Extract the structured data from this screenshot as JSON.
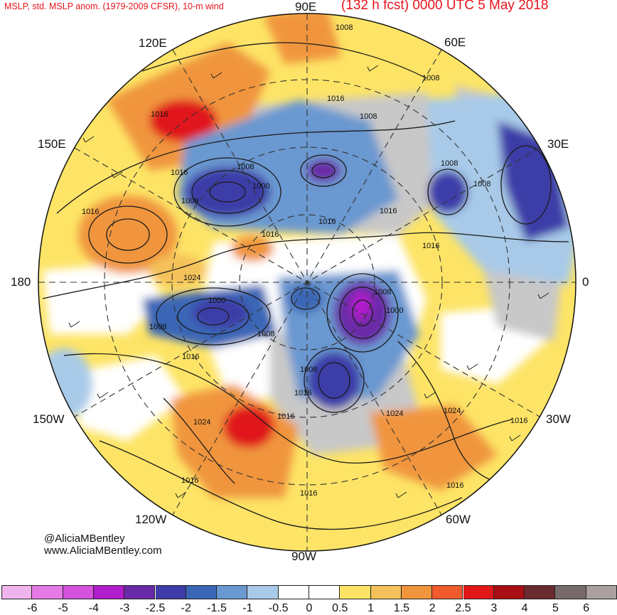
{
  "header": {
    "title_left": "MSLP, std. MSLP anom. (1979-2009 CFSR), 10-m wind",
    "title_right": "(132 h fcst) 0000 UTC 5 May 2018"
  },
  "longitude_labels": {
    "lon_90e": "90E",
    "lon_60e": "60E",
    "lon_120e": "120E",
    "lon_30e": "30E",
    "lon_150e": "150E",
    "lon_180": "180",
    "lon_0": "0",
    "lon_150w": "150W",
    "lon_30w": "30W",
    "lon_120w": "120W",
    "lon_60w": "60W",
    "lon_90w": "90W"
  },
  "credits": {
    "handle": "@AliciaMBentley",
    "website": "www.AliciaMBentley.com"
  },
  "isobar_labels": [
    {
      "text": "1008"
    },
    {
      "text": "1008"
    },
    {
      "text": "1016"
    },
    {
      "text": "1008"
    },
    {
      "text": "1016"
    },
    {
      "text": "1016"
    },
    {
      "text": "1008"
    },
    {
      "text": "1008"
    },
    {
      "text": "1000"
    },
    {
      "text": "1008"
    },
    {
      "text": "1008"
    },
    {
      "text": "1016"
    },
    {
      "text": "1016"
    },
    {
      "text": "1016"
    },
    {
      "text": "1016"
    },
    {
      "text": "1016"
    },
    {
      "text": "1024"
    },
    {
      "text": "1000"
    },
    {
      "text": "1008"
    },
    {
      "text": "1008"
    },
    {
      "text": "1008"
    },
    {
      "text": "1000"
    },
    {
      "text": "1016"
    },
    {
      "text": "1008"
    },
    {
      "text": "1016"
    },
    {
      "text": "1024"
    },
    {
      "text": "1024"
    },
    {
      "text": "1016"
    },
    {
      "text": "1024"
    },
    {
      "text": "1016"
    },
    {
      "text": "1016"
    },
    {
      "text": "1016"
    },
    {
      "text": "1016"
    }
  ],
  "colorbar": {
    "ticks": [
      "-6",
      "-5",
      "-4",
      "-3",
      "-2.5",
      "-2",
      "-1.5",
      "-1",
      "-0.5",
      "0",
      "0.5",
      "1",
      "1.5",
      "2",
      "2.5",
      "3",
      "4",
      "5",
      "6"
    ],
    "colors": [
      "#f0b4ec",
      "#e57ae5",
      "#d452dc",
      "#b11ccc",
      "#6a2aa8",
      "#3e3ca8",
      "#3a66b6",
      "#6a98d0",
      "#a8cae8",
      "#ffffff",
      "#ffffff",
      "#fde466",
      "#f4c15a",
      "#f0953c",
      "#f05a2c",
      "#e0181a",
      "#a80e14",
      "#6a2a2e",
      "#766a6a",
      "#aaa0a0"
    ]
  },
  "anomaly_regions": [
    {
      "name": "east-asia-positive",
      "value": 2.5,
      "color": "#e0181a"
    },
    {
      "name": "north-pacific-positive",
      "value": 1.5,
      "color": "#f0953c"
    },
    {
      "name": "north-america-positive",
      "value": 2.5,
      "color": "#e0181a"
    },
    {
      "name": "north-atlantic-positive",
      "value": 1,
      "color": "#fde466"
    },
    {
      "name": "arctic-negative",
      "value": -3,
      "color": "#6a2aa8"
    },
    {
      "name": "russia-negative",
      "value": -3,
      "color": "#3e3ca8"
    },
    {
      "name": "siberia-negative",
      "value": -2,
      "color": "#3a66b6"
    },
    {
      "name": "hudson-bay-negative",
      "value": -4,
      "color": "#b11ccc"
    },
    {
      "name": "alaska-negative",
      "value": -2.5,
      "color": "#3e3ca8"
    }
  ]
}
